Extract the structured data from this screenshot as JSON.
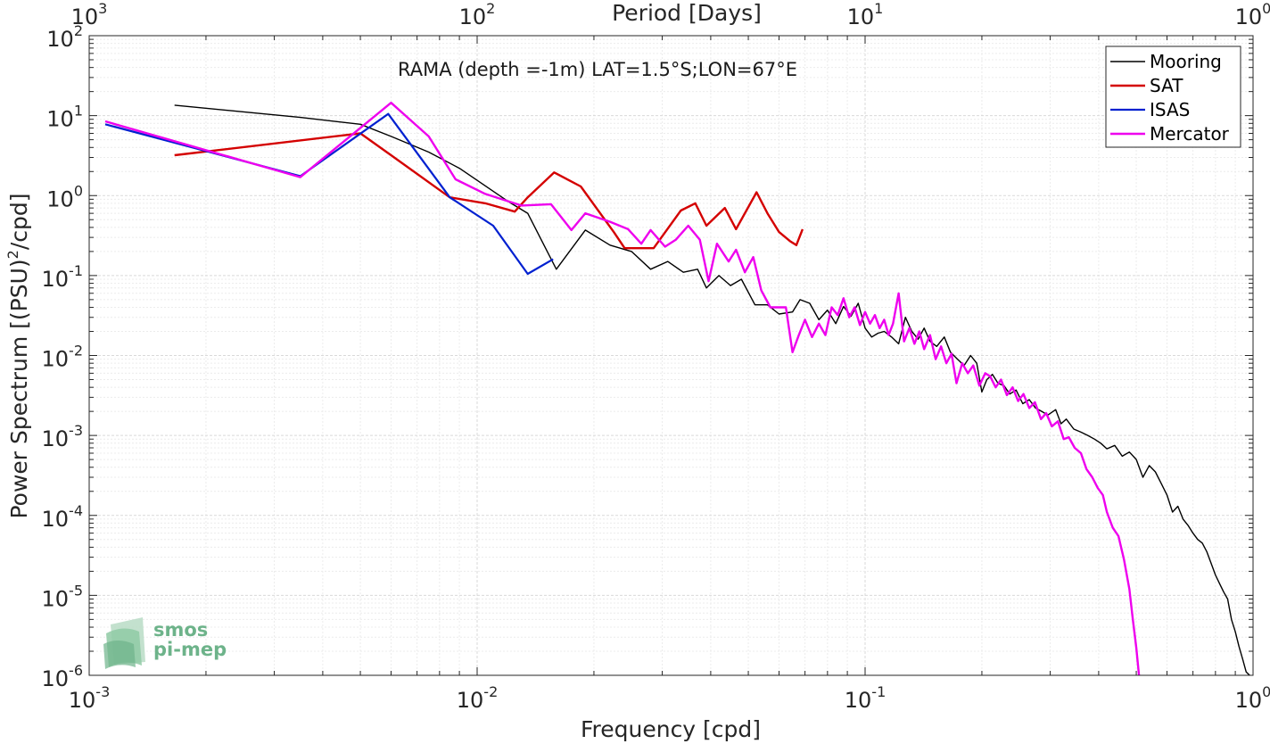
{
  "chart_data": {
    "type": "line",
    "xscale": "log",
    "yscale": "log",
    "xlabel": "Frequency [cpd]",
    "ylabel_main": "Power Spectrum [(PSU)",
    "ylabel_sup": "2",
    "ylabel_tail": "/cpd]",
    "top_axis_label": "Period [Days]",
    "annotation": "RAMA (depth =-1m) LAT=1.5°S;LON=67°E",
    "xlim": [
      0.001,
      1
    ],
    "ylim": [
      1e-06,
      100
    ],
    "grid": true,
    "legend_position": "top-right",
    "x_ticks": [
      {
        "value": 0.001,
        "base": "10",
        "exp": "-3"
      },
      {
        "value": 0.01,
        "base": "10",
        "exp": "-2"
      },
      {
        "value": 0.1,
        "base": "10",
        "exp": "-1"
      },
      {
        "value": 1,
        "base": "10",
        "exp": "0"
      }
    ],
    "top_ticks": [
      {
        "value": 0.001,
        "base": "10",
        "exp": "3"
      },
      {
        "value": 0.01,
        "base": "10",
        "exp": "2"
      },
      {
        "value": 0.1,
        "base": "10",
        "exp": "1"
      },
      {
        "value": 1,
        "base": "10",
        "exp": "0"
      }
    ],
    "y_ticks": [
      {
        "value": 1e-06,
        "base": "10",
        "exp": "-6"
      },
      {
        "value": 1e-05,
        "base": "10",
        "exp": "-5"
      },
      {
        "value": 0.0001,
        "base": "10",
        "exp": "-4"
      },
      {
        "value": 0.001,
        "base": "10",
        "exp": "-3"
      },
      {
        "value": 0.01,
        "base": "10",
        "exp": "-2"
      },
      {
        "value": 0.1,
        "base": "10",
        "exp": "-1"
      },
      {
        "value": 1,
        "base": "10",
        "exp": "0"
      },
      {
        "value": 10,
        "base": "10",
        "exp": "1"
      },
      {
        "value": 100,
        "base": "10",
        "exp": "2"
      }
    ],
    "series": [
      {
        "name": "Mooring",
        "color": "#000000",
        "width": 1.4,
        "points": [
          [
            0.00166,
            13.5
          ],
          [
            0.0035,
            9.5
          ],
          [
            0.005,
            7.8
          ],
          [
            0.006,
            5.5
          ],
          [
            0.0075,
            3.5
          ],
          [
            0.009,
            2.2
          ],
          [
            0.012,
            0.85
          ],
          [
            0.0135,
            0.6
          ],
          [
            0.016,
            0.12
          ],
          [
            0.019,
            0.37
          ],
          [
            0.022,
            0.24
          ],
          [
            0.025,
            0.2
          ],
          [
            0.028,
            0.12
          ],
          [
            0.031,
            0.15
          ],
          [
            0.034,
            0.11
          ],
          [
            0.037,
            0.12
          ],
          [
            0.039,
            0.07
          ],
          [
            0.042,
            0.1
          ],
          [
            0.045,
            0.075
          ],
          [
            0.048,
            0.09
          ],
          [
            0.052,
            0.043
          ],
          [
            0.056,
            0.043
          ],
          [
            0.06,
            0.033
          ],
          [
            0.065,
            0.035
          ],
          [
            0.068,
            0.05
          ],
          [
            0.072,
            0.045
          ],
          [
            0.076,
            0.028
          ],
          [
            0.08,
            0.037
          ],
          [
            0.084,
            0.025
          ],
          [
            0.088,
            0.041
          ],
          [
            0.092,
            0.031
          ],
          [
            0.096,
            0.045
          ],
          [
            0.1,
            0.022
          ],
          [
            0.104,
            0.017
          ],
          [
            0.108,
            0.019
          ],
          [
            0.112,
            0.02
          ],
          [
            0.117,
            0.017
          ],
          [
            0.122,
            0.014
          ],
          [
            0.127,
            0.03
          ],
          [
            0.132,
            0.02
          ],
          [
            0.137,
            0.016
          ],
          [
            0.142,
            0.022
          ],
          [
            0.147,
            0.015
          ],
          [
            0.153,
            0.013
          ],
          [
            0.16,
            0.017
          ],
          [
            0.166,
            0.011
          ],
          [
            0.173,
            0.009
          ],
          [
            0.18,
            0.0075
          ],
          [
            0.187,
            0.01
          ],
          [
            0.194,
            0.008
          ],
          [
            0.2,
            0.0035
          ],
          [
            0.206,
            0.005
          ],
          [
            0.213,
            0.0058
          ],
          [
            0.22,
            0.0045
          ],
          [
            0.228,
            0.0042
          ],
          [
            0.236,
            0.0033
          ],
          [
            0.245,
            0.0037
          ],
          [
            0.255,
            0.0025
          ],
          [
            0.265,
            0.0028
          ],
          [
            0.275,
            0.0022
          ],
          [
            0.285,
            0.002
          ],
          [
            0.296,
            0.0018
          ],
          [
            0.31,
            0.0021
          ],
          [
            0.32,
            0.0014
          ],
          [
            0.33,
            0.0016
          ],
          [
            0.345,
            0.0012
          ],
          [
            0.36,
            0.0011
          ],
          [
            0.375,
            0.001
          ],
          [
            0.39,
            0.0009
          ],
          [
            0.405,
            0.0008
          ],
          [
            0.42,
            0.00068
          ],
          [
            0.44,
            0.00075
          ],
          [
            0.46,
            0.00055
          ],
          [
            0.48,
            0.00062
          ],
          [
            0.5,
            0.0005
          ],
          [
            0.52,
            0.0003
          ],
          [
            0.54,
            0.00042
          ],
          [
            0.56,
            0.00035
          ],
          [
            0.58,
            0.00025
          ],
          [
            0.6,
            0.00018
          ],
          [
            0.62,
            0.00011
          ],
          [
            0.64,
            0.00013
          ],
          [
            0.66,
            9e-05
          ],
          [
            0.68,
            7.5e-05
          ],
          [
            0.7,
            6e-05
          ],
          [
            0.72,
            5e-05
          ],
          [
            0.74,
            4.5e-05
          ],
          [
            0.76,
            3.5e-05
          ],
          [
            0.78,
            2.5e-05
          ],
          [
            0.8,
            1.8e-05
          ],
          [
            0.82,
            1.4e-05
          ],
          [
            0.84,
            1.1e-05
          ],
          [
            0.86,
            9e-06
          ],
          [
            0.88,
            5e-06
          ],
          [
            0.9,
            3.5e-06
          ],
          [
            0.92,
            2.3e-06
          ],
          [
            0.94,
            1.6e-06
          ],
          [
            0.96,
            1.1e-06
          ],
          [
            0.98,
            1e-06
          ]
        ]
      },
      {
        "name": "SAT",
        "color": "#d40000",
        "width": 2.4,
        "points": [
          [
            0.00166,
            3.2
          ],
          [
            0.005,
            6.0
          ],
          [
            0.006,
            3.2
          ],
          [
            0.0085,
            0.95
          ],
          [
            0.0105,
            0.8
          ],
          [
            0.0125,
            0.63
          ],
          [
            0.0135,
            0.95
          ],
          [
            0.0158,
            1.95
          ],
          [
            0.0185,
            1.3
          ],
          [
            0.0225,
            0.35
          ],
          [
            0.024,
            0.22
          ],
          [
            0.0285,
            0.22
          ],
          [
            0.0335,
            0.65
          ],
          [
            0.0365,
            0.8
          ],
          [
            0.039,
            0.42
          ],
          [
            0.0435,
            0.7
          ],
          [
            0.0465,
            0.38
          ],
          [
            0.0525,
            1.1
          ],
          [
            0.056,
            0.6
          ],
          [
            0.06,
            0.35
          ],
          [
            0.064,
            0.27
          ],
          [
            0.0665,
            0.24
          ],
          [
            0.069,
            0.38
          ]
        ]
      },
      {
        "name": "ISAS",
        "color": "#0020d0",
        "width": 2.2,
        "points": [
          [
            0.0011,
            7.8
          ],
          [
            0.0035,
            1.75
          ],
          [
            0.0059,
            10.5
          ],
          [
            0.0085,
            0.95
          ],
          [
            0.011,
            0.42
          ],
          [
            0.0135,
            0.105
          ],
          [
            0.0157,
            0.16
          ]
        ]
      },
      {
        "name": "Mercator",
        "color": "#ee00ee",
        "width": 2.4,
        "points": [
          [
            0.0011,
            8.5
          ],
          [
            0.0035,
            1.7
          ],
          [
            0.006,
            14.5
          ],
          [
            0.0075,
            5.5
          ],
          [
            0.0088,
            1.6
          ],
          [
            0.0105,
            1.05
          ],
          [
            0.013,
            0.75
          ],
          [
            0.0155,
            0.78
          ],
          [
            0.0175,
            0.37
          ],
          [
            0.019,
            0.6
          ],
          [
            0.022,
            0.47
          ],
          [
            0.0245,
            0.38
          ],
          [
            0.0265,
            0.25
          ],
          [
            0.028,
            0.37
          ],
          [
            0.0305,
            0.23
          ],
          [
            0.0325,
            0.28
          ],
          [
            0.035,
            0.42
          ],
          [
            0.0375,
            0.28
          ],
          [
            0.0395,
            0.085
          ],
          [
            0.0415,
            0.25
          ],
          [
            0.0445,
            0.15
          ],
          [
            0.0465,
            0.21
          ],
          [
            0.049,
            0.11
          ],
          [
            0.0515,
            0.17
          ],
          [
            0.054,
            0.065
          ],
          [
            0.057,
            0.04
          ],
          [
            0.06,
            0.04
          ],
          [
            0.0625,
            0.04
          ],
          [
            0.065,
            0.011
          ],
          [
            0.0675,
            0.018
          ],
          [
            0.07,
            0.028
          ],
          [
            0.073,
            0.017
          ],
          [
            0.076,
            0.025
          ],
          [
            0.079,
            0.018
          ],
          [
            0.082,
            0.04
          ],
          [
            0.085,
            0.032
          ],
          [
            0.088,
            0.052
          ],
          [
            0.091,
            0.03
          ],
          [
            0.094,
            0.04
          ],
          [
            0.097,
            0.024
          ],
          [
            0.1,
            0.035
          ],
          [
            0.103,
            0.025
          ],
          [
            0.106,
            0.032
          ],
          [
            0.109,
            0.022
          ],
          [
            0.112,
            0.028
          ],
          [
            0.115,
            0.018
          ],
          [
            0.118,
            0.025
          ],
          [
            0.122,
            0.06
          ],
          [
            0.126,
            0.015
          ],
          [
            0.13,
            0.022
          ],
          [
            0.134,
            0.014
          ],
          [
            0.138,
            0.02
          ],
          [
            0.142,
            0.012
          ],
          [
            0.147,
            0.018
          ],
          [
            0.152,
            0.009
          ],
          [
            0.157,
            0.013
          ],
          [
            0.162,
            0.008
          ],
          [
            0.167,
            0.0105
          ],
          [
            0.172,
            0.0045
          ],
          [
            0.178,
            0.008
          ],
          [
            0.184,
            0.006
          ],
          [
            0.19,
            0.0075
          ],
          [
            0.197,
            0.0042
          ],
          [
            0.204,
            0.006
          ],
          [
            0.21,
            0.0055
          ],
          [
            0.217,
            0.004
          ],
          [
            0.224,
            0.005
          ],
          [
            0.232,
            0.0032
          ],
          [
            0.24,
            0.004
          ],
          [
            0.248,
            0.0027
          ],
          [
            0.256,
            0.0033
          ],
          [
            0.265,
            0.0022
          ],
          [
            0.274,
            0.0026
          ],
          [
            0.284,
            0.0016
          ],
          [
            0.293,
            0.0019
          ],
          [
            0.303,
            0.0013
          ],
          [
            0.314,
            0.0015
          ],
          [
            0.325,
            0.0009
          ],
          [
            0.335,
            0.00095
          ],
          [
            0.347,
            0.0007
          ],
          [
            0.36,
            0.0006
          ],
          [
            0.372,
            0.00038
          ],
          [
            0.385,
            0.0003
          ],
          [
            0.398,
            0.00022
          ],
          [
            0.41,
            0.00018
          ],
          [
            0.42,
            0.00011
          ],
          [
            0.435,
            7e-05
          ],
          [
            0.45,
            5.5e-05
          ],
          [
            0.465,
            2.8e-05
          ],
          [
            0.48,
            1.2e-05
          ],
          [
            0.49,
            5e-06
          ],
          [
            0.5,
            2.2e-06
          ],
          [
            0.508,
            1e-06
          ]
        ]
      }
    ]
  },
  "logo": {
    "line1": "smos",
    "line2": "pi-mep"
  },
  "colors": {
    "axis": "#262626",
    "grid_major": "#d9d9d9",
    "grid_minor": "#ececec",
    "logo_text": "#6db38a",
    "logo_shape": "#8fcaa5"
  }
}
